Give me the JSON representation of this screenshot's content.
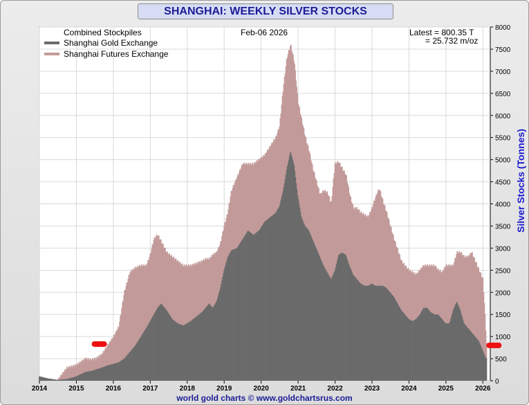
{
  "title": "SHANGHAI: WEEKLY SILVER STOCKS",
  "footer": "world gold charts © www.goldchartsrus.com",
  "date_label": "Feb-06  2026",
  "latest_line1": "Latest = 800.35 T",
  "latest_line2": "= 25.732 m/oz",
  "legend": {
    "header": "Combined Stockpiles",
    "items": [
      {
        "label": "Shanghai Gold Exchange",
        "color": "#6b6b6b"
      },
      {
        "label": "Shanghai Futures Exchange",
        "color": "#c39a9a"
      }
    ]
  },
  "colors": {
    "sge_bar": "#6b6b6b",
    "shfe_bar": "#c39a9a",
    "grid": "#d9d9d9",
    "marker": "#ee1111"
  },
  "chart_data": {
    "type": "area",
    "title": "SHANGHAI: WEEKLY SILVER STOCKS",
    "xlabel": "",
    "ylabel": "Silver Stocks (Tonnes)",
    "ylim": [
      0,
      8000
    ],
    "yticks": [
      0,
      500,
      1000,
      1500,
      2000,
      2500,
      3000,
      3500,
      4000,
      4500,
      5000,
      5500,
      6000,
      6500,
      7000,
      7500,
      8000
    ],
    "xticks": [
      "2014",
      "2015",
      "2016",
      "2017",
      "2018",
      "2019",
      "2020",
      "2021",
      "2022",
      "2023",
      "2024",
      "2025",
      "2026"
    ],
    "xlim": [
      2014.0,
      2026.2
    ],
    "grid": true,
    "legend_position": "top-left",
    "stacked": true,
    "x": [
      2014.0,
      2014.25,
      2014.5,
      2014.75,
      2015.0,
      2015.25,
      2015.4,
      2015.55,
      2015.7,
      2015.85,
      2016.0,
      2016.15,
      2016.3,
      2016.45,
      2016.6,
      2016.75,
      2016.9,
      2017.0,
      2017.1,
      2017.2,
      2017.3,
      2017.45,
      2017.6,
      2017.75,
      2017.9,
      2018.0,
      2018.1,
      2018.25,
      2018.4,
      2018.5,
      2018.6,
      2018.7,
      2018.8,
      2018.9,
      2019.0,
      2019.1,
      2019.2,
      2019.35,
      2019.5,
      2019.65,
      2019.8,
      2019.95,
      2020.1,
      2020.25,
      2020.4,
      2020.5,
      2020.6,
      2020.7,
      2020.8,
      2020.9,
      2021.0,
      2021.1,
      2021.2,
      2021.3,
      2021.4,
      2021.5,
      2021.6,
      2021.7,
      2021.8,
      2021.9,
      2022.0,
      2022.1,
      2022.2,
      2022.3,
      2022.4,
      2022.5,
      2022.6,
      2022.7,
      2022.8,
      2022.9,
      2023.0,
      2023.1,
      2023.2,
      2023.3,
      2023.4,
      2023.5,
      2023.6,
      2023.7,
      2023.8,
      2023.9,
      2024.0,
      2024.1,
      2024.2,
      2024.3,
      2024.4,
      2024.5,
      2024.6,
      2024.7,
      2024.8,
      2024.9,
      2025.0,
      2025.1,
      2025.2,
      2025.3,
      2025.4,
      2025.5,
      2025.6,
      2025.7,
      2025.8,
      2025.9,
      2026.0,
      2026.05,
      2026.1
    ],
    "series": [
      {
        "name": "Shanghai Gold Exchange",
        "values": [
          100,
          50,
          20,
          40,
          100,
          200,
          220,
          260,
          300,
          350,
          380,
          420,
          500,
          650,
          800,
          1000,
          1200,
          1350,
          1500,
          1650,
          1750,
          1600,
          1400,
          1300,
          1250,
          1300,
          1350,
          1450,
          1550,
          1650,
          1750,
          1650,
          1800,
          2100,
          2500,
          2800,
          2950,
          3000,
          3200,
          3400,
          3300,
          3400,
          3600,
          3700,
          3800,
          3950,
          4300,
          4800,
          5200,
          4900,
          4200,
          3700,
          3500,
          3400,
          3200,
          3000,
          2800,
          2600,
          2450,
          2300,
          2500,
          2850,
          2900,
          2850,
          2600,
          2400,
          2300,
          2200,
          2150,
          2150,
          2200,
          2150,
          2150,
          2150,
          2100,
          2000,
          1900,
          1750,
          1600,
          1500,
          1400,
          1350,
          1400,
          1500,
          1650,
          1650,
          1550,
          1500,
          1500,
          1400,
          1300,
          1300,
          1600,
          1800,
          1600,
          1300,
          1200,
          1100,
          1000,
          900,
          700,
          600,
          500
        ]
      },
      {
        "name": "Shanghai Futures Exchange",
        "values": [
          0,
          0,
          0,
          250,
          250,
          300,
          250,
          250,
          300,
          450,
          600,
          800,
          1500,
          1800,
          1750,
          1600,
          1400,
          1500,
          1700,
          1650,
          1400,
          1300,
          1400,
          1400,
          1350,
          1300,
          1250,
          1200,
          1150,
          1100,
          1000,
          1200,
          1100,
          1000,
          1000,
          1000,
          1350,
          1600,
          1700,
          1500,
          1600,
          1600,
          1500,
          1600,
          1700,
          1800,
          2300,
          2500,
          2400,
          2300,
          2100,
          2200,
          2000,
          1800,
          1600,
          1500,
          1400,
          1700,
          1800,
          1700,
          2400,
          2100,
          1900,
          1800,
          1600,
          1500,
          1600,
          1600,
          1600,
          1550,
          1700,
          2000,
          2200,
          1900,
          1700,
          1500,
          1300,
          1200,
          1100,
          1100,
          1100,
          1100,
          1000,
          1000,
          950,
          950,
          1050,
          1100,
          1000,
          1050,
          1300,
          1300,
          1000,
          1100,
          1300,
          1500,
          1600,
          1800,
          1700,
          1600,
          1600,
          1000,
          300
        ]
      }
    ],
    "annotations": [
      "Combined Stockpiles",
      "Feb-06  2026",
      "Latest = 800.35 T",
      "= 25.732 m/oz"
    ],
    "markers": [
      {
        "x": 2015.62,
        "y": 830
      },
      {
        "x": 2026.3,
        "y": 800
      }
    ]
  }
}
